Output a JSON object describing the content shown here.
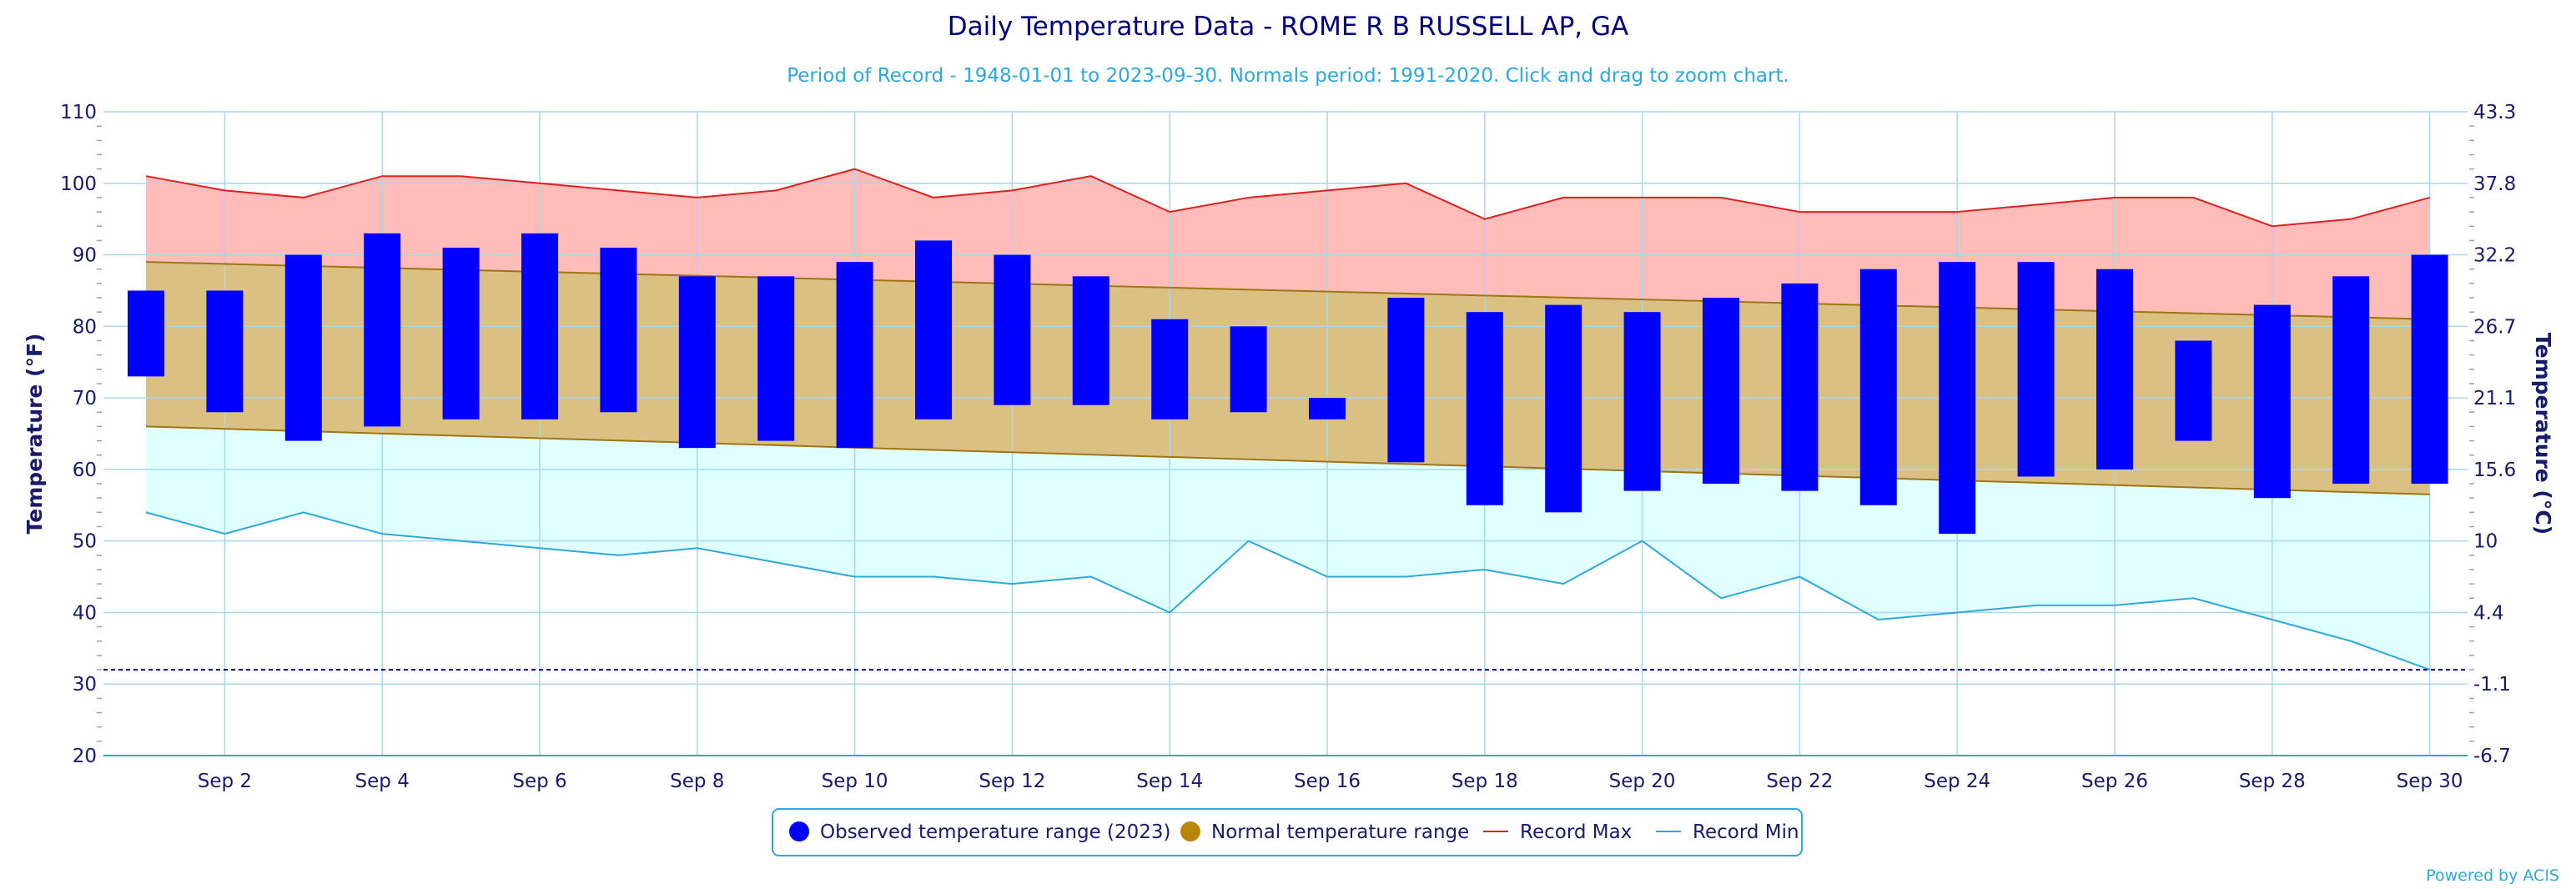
{
  "chart_data": {
    "type": "bar",
    "title": "Daily Temperature Data - ROME R B RUSSELL AP, GA",
    "subtitle": "Period of Record - 1948-01-01 to 2023-09-30. Normals period: 1991-2020. Click and drag to zoom chart.",
    "ylabel_left": "Temperature (°F)",
    "ylabel_right": "Temperature (°C)",
    "ylim": [
      20,
      110
    ],
    "y_ticks": [
      20,
      30,
      40,
      50,
      60,
      70,
      80,
      90,
      100,
      110
    ],
    "y_ticks_right": [
      "-6.7",
      "-1.1",
      "4.4",
      "10",
      "15.6",
      "21.1",
      "26.7",
      "32.2",
      "37.8",
      "43.3"
    ],
    "x_days": [
      1,
      2,
      3,
      4,
      5,
      6,
      7,
      8,
      9,
      10,
      11,
      12,
      13,
      14,
      15,
      16,
      17,
      18,
      19,
      20,
      21,
      22,
      23,
      24,
      25,
      26,
      27,
      28,
      29,
      30
    ],
    "x_tick_days": [
      2,
      4,
      6,
      8,
      10,
      12,
      14,
      16,
      18,
      20,
      22,
      24,
      26,
      28,
      30
    ],
    "x_tick_labels": [
      "Sep 2",
      "Sep 4",
      "Sep 6",
      "Sep 8",
      "Sep 10",
      "Sep 12",
      "Sep 14",
      "Sep 16",
      "Sep 18",
      "Sep 20",
      "Sep 22",
      "Sep 24",
      "Sep 26",
      "Sep 28",
      "Sep 30"
    ],
    "freezing_line": 32,
    "grid": true,
    "legend_position": "bottom-center",
    "series": [
      {
        "name": "Observed temperature range (2023)",
        "color": "#0000ff",
        "high": [
          85,
          85,
          90,
          93,
          91,
          93,
          91,
          87,
          87,
          89,
          92,
          90,
          87,
          81,
          80,
          70,
          84,
          82,
          83,
          82,
          84,
          86,
          88,
          89,
          89,
          88,
          78,
          83,
          87,
          90
        ],
        "low": [
          73,
          68,
          64,
          66,
          67,
          67,
          68,
          63,
          64,
          63,
          67,
          69,
          69,
          67,
          68,
          67,
          61,
          55,
          54,
          57,
          58,
          57,
          55,
          51,
          59,
          60,
          64,
          56,
          58,
          58
        ]
      },
      {
        "name": "Normal temperature range",
        "color": "#b8860b",
        "high_start": 89,
        "high_end": 81,
        "low_start": 66,
        "low_end": 56.5
      },
      {
        "name": "Record Max",
        "color": "#e02020",
        "values": [
          101,
          99,
          98,
          101,
          101,
          100,
          99,
          98,
          99,
          102,
          98,
          99,
          101,
          96,
          98,
          99,
          100,
          95,
          98,
          98,
          98,
          96,
          96,
          96,
          97,
          98,
          98,
          94,
          95,
          98
        ]
      },
      {
        "name": "Record Min",
        "color": "#2ea8d8",
        "values": [
          54,
          51,
          54,
          51,
          50,
          49,
          48,
          49,
          47,
          45,
          45,
          44,
          45,
          40,
          50,
          45,
          45,
          46,
          44,
          50,
          42,
          45,
          39,
          40,
          41,
          41,
          42,
          39,
          36,
          32
        ]
      }
    ]
  },
  "credits": "Powered by ACIS"
}
